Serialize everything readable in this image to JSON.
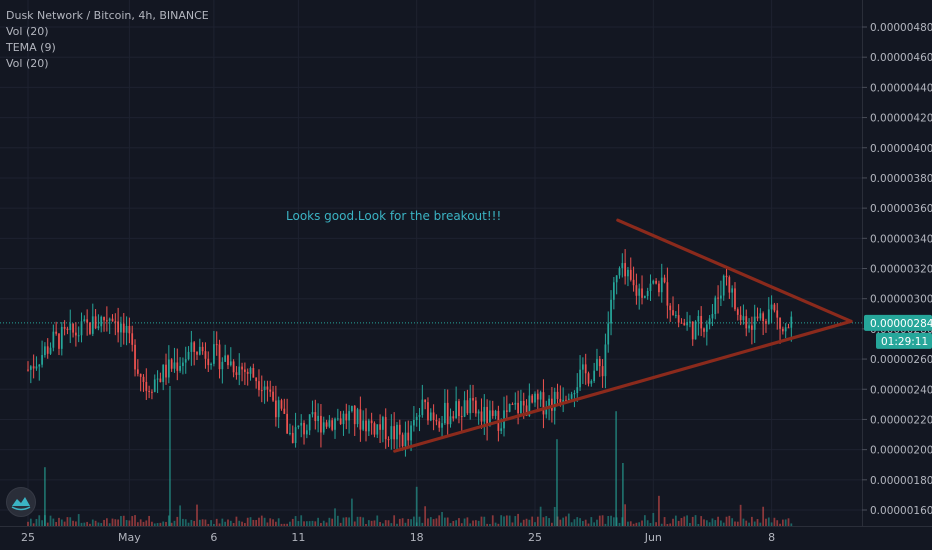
{
  "header": {
    "title": "Dusk Network / Bitcoin, 4h, BINANCE",
    "indicators": [
      "Vol (20)",
      "TEMA (9)",
      "Vol (20)"
    ]
  },
  "colors": {
    "background": "#131722",
    "grid": "#1e2230",
    "up": "#26a69a",
    "down": "#ef5350",
    "trendline": "#8b2a1c",
    "annotation": "#3bb3c3",
    "price_line": "#26a69a",
    "axis_text": "#b2b5be"
  },
  "chart_data": {
    "type": "candlestick",
    "annotation": "Looks good.Look for the breakout!!!",
    "y_axis": {
      "min": 1.5e-06,
      "max": 4.9e-06,
      "ticks": [
        "0.00000480",
        "0.00000460",
        "0.00000440",
        "0.00000420",
        "0.00000400",
        "0.00000380",
        "0.00000360",
        "0.00000340",
        "0.00000320",
        "0.00000300",
        "0.00000280",
        "0.00000260",
        "0.00000240",
        "0.00000220",
        "0.00000200",
        "0.00000180",
        "0.00000160"
      ]
    },
    "x_axis": {
      "ticks": [
        "25",
        "May",
        "6",
        "11",
        "18",
        "25",
        "Jun",
        "8"
      ]
    },
    "current_price": {
      "label": "0.00000284",
      "value": 2.84e-06,
      "countdown": "01:29:11"
    },
    "close_path": [
      {
        "d": 0,
        "v": 2.53e-06
      },
      {
        "d": 1.5,
        "v": 2.72e-06
      },
      {
        "d": 3,
        "v": 2.78e-06
      },
      {
        "d": 5,
        "v": 2.9e-06
      },
      {
        "d": 5.8,
        "v": 2.75e-06
      },
      {
        "d": 7,
        "v": 2.42e-06
      },
      {
        "d": 8.5,
        "v": 2.55e-06
      },
      {
        "d": 10,
        "v": 2.67e-06
      },
      {
        "d": 12,
        "v": 2.58e-06
      },
      {
        "d": 14,
        "v": 2.45e-06
      },
      {
        "d": 15.5,
        "v": 2.1e-06
      },
      {
        "d": 17,
        "v": 2.18e-06
      },
      {
        "d": 19,
        "v": 2.22e-06
      },
      {
        "d": 21,
        "v": 2.14e-06
      },
      {
        "d": 22.5,
        "v": 2.06e-06
      },
      {
        "d": 23.3,
        "v": 2.28e-06
      },
      {
        "d": 24.3,
        "v": 2.22e-06
      },
      {
        "d": 26,
        "v": 2.28e-06
      },
      {
        "d": 27.5,
        "v": 2.18e-06
      },
      {
        "d": 29,
        "v": 2.28e-06
      },
      {
        "d": 31,
        "v": 2.32e-06
      },
      {
        "d": 32.7,
        "v": 2.48e-06
      },
      {
        "d": 34,
        "v": 2.55e-06
      },
      {
        "d": 34.5,
        "v": 3e-06
      },
      {
        "d": 35,
        "v": 3.18e-06
      },
      {
        "d": 36,
        "v": 3.05e-06
      },
      {
        "d": 37.5,
        "v": 3.1e-06
      },
      {
        "d": 38.5,
        "v": 2.85e-06
      },
      {
        "d": 39.5,
        "v": 2.8e-06
      },
      {
        "d": 40.5,
        "v": 2.9e-06
      },
      {
        "d": 41.3,
        "v": 3.18e-06
      },
      {
        "d": 42,
        "v": 2.88e-06
      },
      {
        "d": 43,
        "v": 2.85e-06
      },
      {
        "d": 44,
        "v": 2.94e-06
      },
      {
        "d": 44.7,
        "v": 2.77e-06
      },
      {
        "d": 45.2,
        "v": 2.84e-06
      }
    ],
    "volume_spikes": [
      {
        "d": 1,
        "h": 0.42
      },
      {
        "d": 8.4,
        "h": 1.0
      },
      {
        "d": 23,
        "h": 0.28
      },
      {
        "d": 31.3,
        "h": 0.62
      },
      {
        "d": 34.8,
        "h": 0.82
      },
      {
        "d": 35.2,
        "h": 0.45
      }
    ],
    "trendlines": [
      {
        "from": {
          "d": 21.7,
          "v": 1.99e-06
        },
        "to": {
          "d": 48.7,
          "v": 2.85e-06
        }
      },
      {
        "from": {
          "d": 34.9,
          "v": 3.52e-06
        },
        "to": {
          "d": 48.7,
          "v": 2.85e-06
        }
      }
    ]
  }
}
